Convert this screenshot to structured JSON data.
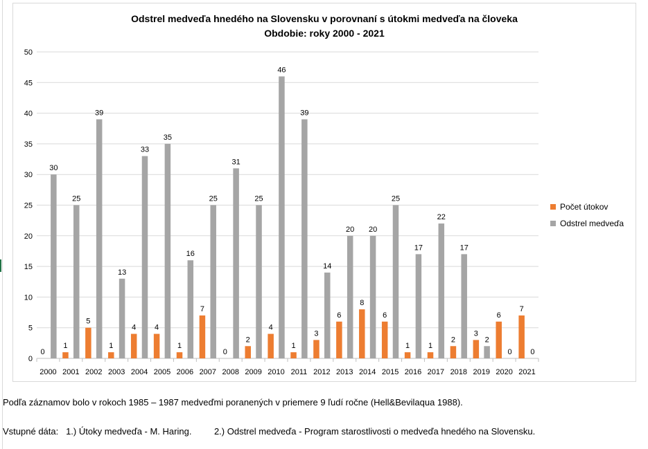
{
  "chart_data": {
    "type": "bar",
    "title": "Odstrel medveďa hnedého na Slovensku v porovnaní s útokmi medveďa na človeka",
    "subtitle": "Obdobie: roky 2000 - 2021",
    "categories": [
      "2000",
      "2001",
      "2002",
      "2003",
      "2004",
      "2005",
      "2006",
      "2007",
      "2008",
      "2009",
      "2010",
      "2011",
      "2012",
      "2013",
      "2014",
      "2015",
      "2016",
      "2017",
      "2018",
      "2019",
      "2020",
      "2021"
    ],
    "series": [
      {
        "name": "Počet útokov",
        "color": "#ED7D31",
        "values": [
          0,
          1,
          5,
          1,
          4,
          4,
          1,
          7,
          0,
          2,
          4,
          1,
          3,
          6,
          8,
          6,
          1,
          1,
          2,
          3,
          6,
          7
        ]
      },
      {
        "name": "Odstrel medveďa",
        "color": "#A5A5A5",
        "values": [
          30,
          25,
          39,
          13,
          33,
          35,
          16,
          25,
          31,
          25,
          46,
          39,
          14,
          20,
          20,
          25,
          17,
          22,
          17,
          2,
          0,
          0
        ]
      }
    ],
    "ylim": [
      0,
      50
    ],
    "yticks": [
      0,
      5,
      10,
      15,
      20,
      25,
      30,
      35,
      40,
      45,
      50
    ],
    "grid": true,
    "legend": "right"
  },
  "notes": {
    "source_note": "Podľa záznamov bolo v rokoch 1985 – 1987 medveďmi poranených v priemere 9 ľudí ročne (Hell&Bevilaqua 1988).",
    "inputs": "Vstupné dáta:   1.) Útoky medveďa - M. Haring.         2.) Odstrel medveďa - Program starostlivosti o medveďa hnedého na Slovensku."
  }
}
